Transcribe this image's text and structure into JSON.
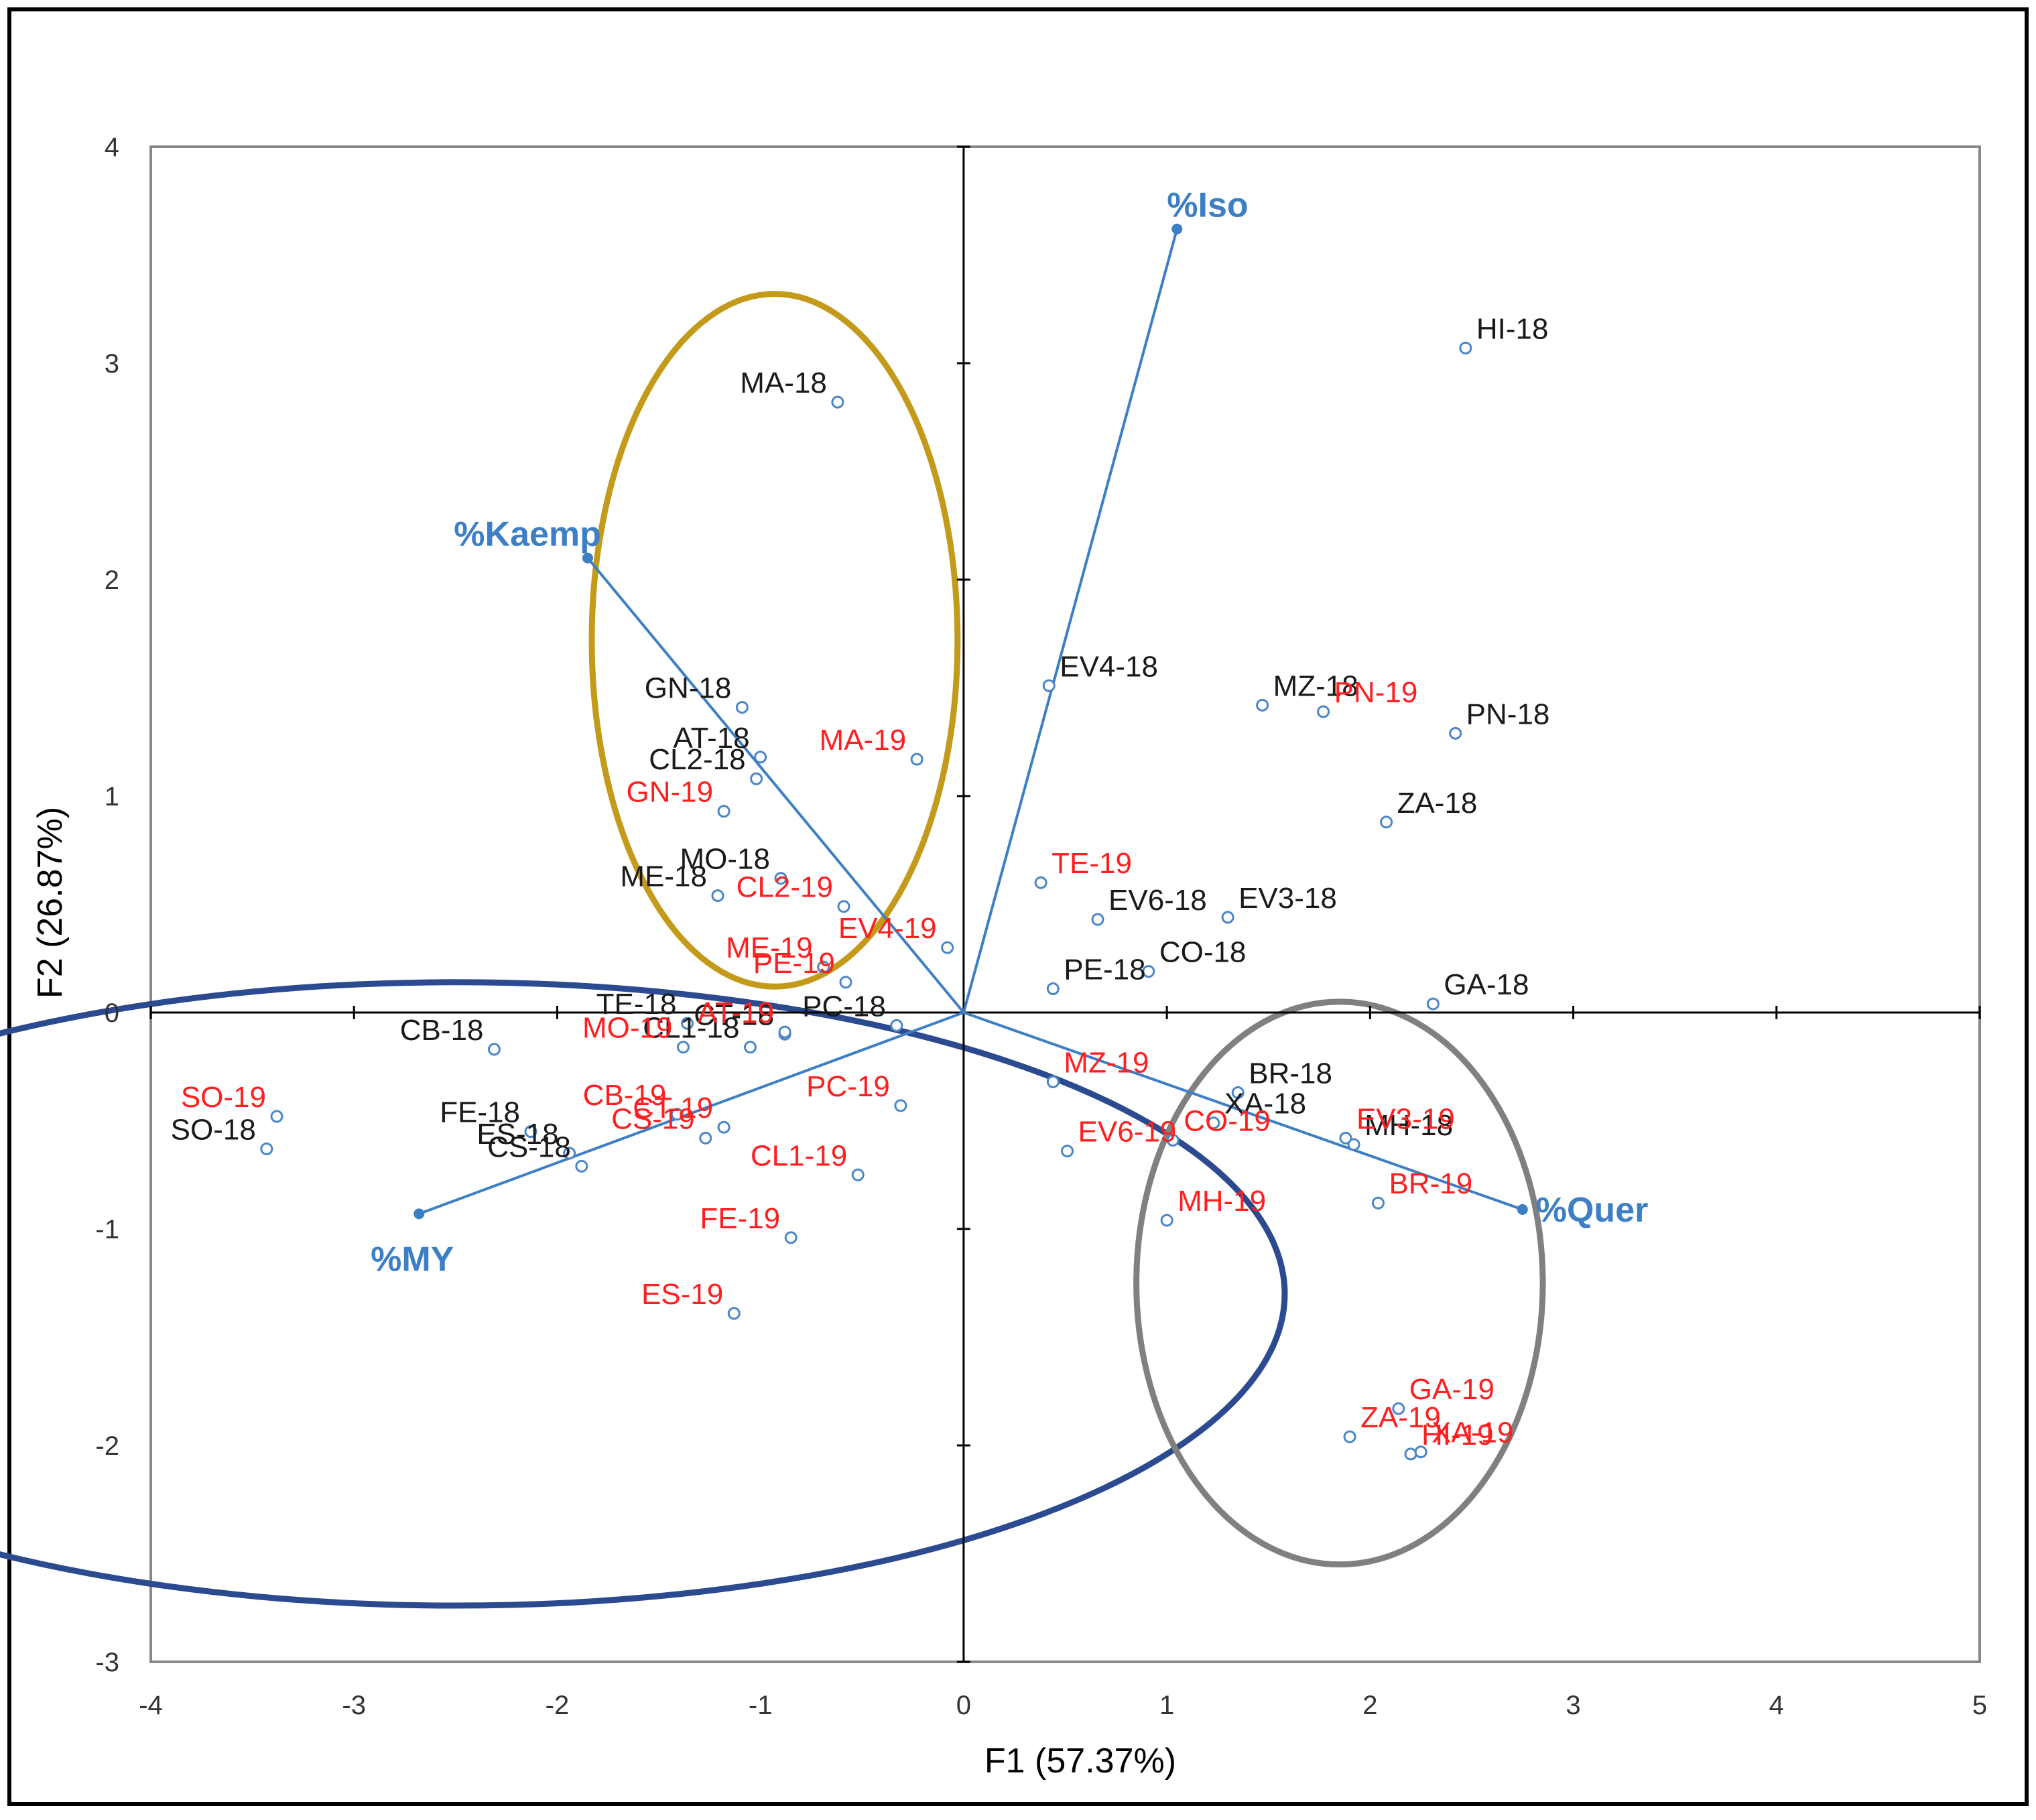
{
  "chart_data": {
    "type": "scatter",
    "subtype": "PCA biplot",
    "xlabel": "F1 (57.37%)",
    "ylabel": "F2 (26.87%)",
    "xlim": [
      -4,
      5
    ],
    "ylim": [
      -3,
      4
    ],
    "xticks": [
      -4,
      -3,
      -2,
      -1,
      0,
      1,
      2,
      3,
      4,
      5
    ],
    "yticks": [
      -3,
      -2,
      -1,
      0,
      1,
      2,
      3,
      4
    ],
    "xtick_labels": [
      "-4",
      "-3",
      "-2",
      "-1",
      "0",
      "1",
      "2",
      "3",
      "4",
      "5"
    ],
    "ytick_labels": [
      "-3",
      "-2",
      "-1",
      "0",
      "1",
      "2",
      "3",
      "4"
    ],
    "colors": {
      "series_2018": "#1a1a1a",
      "series_2019": "#ff1f1f",
      "marker": "#4a86c8",
      "vector": "#3d7fc4",
      "vector_label": "#3d7fc4",
      "axis": "#000000",
      "frame": "#888888"
    },
    "vectors": [
      {
        "label": "%Iso",
        "x": 1.05,
        "y": 3.62
      },
      {
        "label": "%Kaemp",
        "x": -1.85,
        "y": 2.1
      },
      {
        "label": "%MY",
        "x": -2.68,
        "y": -0.93
      },
      {
        "label": "%Quer",
        "x": 2.75,
        "y": -0.91
      }
    ],
    "ellipses": [
      {
        "name": "gold group",
        "color": "#c49a1a",
        "cx": -0.93,
        "cy": 1.72,
        "rx": 0.9,
        "ry": 1.6
      },
      {
        "name": "blue group",
        "color": "#2b4a8f",
        "cx": -2.5,
        "cy": -1.3,
        "rx": 4.08,
        "ry": 1.44
      },
      {
        "name": "gray group",
        "color": "#808080",
        "cx": 1.85,
        "cy": -1.25,
        "rx": 1.0,
        "ry": 1.3
      }
    ],
    "series": [
      {
        "name": "2018",
        "points": [
          {
            "label": "HI-18",
            "x": 2.47,
            "y": 3.07
          },
          {
            "label": "MA-18",
            "x": -0.62,
            "y": 2.82
          },
          {
            "label": "GN-18",
            "x": -1.09,
            "y": 1.41
          },
          {
            "label": "AT-18",
            "x": -1.0,
            "y": 1.18
          },
          {
            "label": "CL2-18",
            "x": -1.02,
            "y": 1.08
          },
          {
            "label": "EV4-18",
            "x": 0.42,
            "y": 1.51
          },
          {
            "label": "MZ-18",
            "x": 1.47,
            "y": 1.42
          },
          {
            "label": "PN-18",
            "x": 2.42,
            "y": 1.29
          },
          {
            "label": "ZA-18",
            "x": 2.08,
            "y": 0.88
          },
          {
            "label": "MO-18",
            "x": -0.9,
            "y": 0.62
          },
          {
            "label": "ME-18",
            "x": -1.21,
            "y": 0.54
          },
          {
            "label": "EV6-18",
            "x": 0.66,
            "y": 0.43
          },
          {
            "label": "EV3-18",
            "x": 1.3,
            "y": 0.44
          },
          {
            "label": "PE-18",
            "x": 0.44,
            "y": 0.11
          },
          {
            "label": "CO-18",
            "x": 0.91,
            "y": 0.19
          },
          {
            "label": "GA-18",
            "x": 2.31,
            "y": 0.04
          },
          {
            "label": "TE-18",
            "x": -1.36,
            "y": -0.05
          },
          {
            "label": "CL1-18",
            "x": -1.05,
            "y": -0.16
          },
          {
            "label": "PC-18",
            "x": -0.33,
            "y": -0.06
          },
          {
            "label": "CT-18",
            "x": -0.88,
            "y": -0.1
          },
          {
            "label": "CB-18",
            "x": -2.31,
            "y": -0.17
          },
          {
            "label": "BR-18",
            "x": 1.35,
            "y": -0.37
          },
          {
            "label": "XA-18",
            "x": 1.23,
            "y": -0.51
          },
          {
            "label": "MH-18",
            "x": 1.92,
            "y": -0.61
          },
          {
            "label": "FE-18",
            "x": -2.13,
            "y": -0.55
          },
          {
            "label": "ES-18",
            "x": -1.94,
            "y": -0.65
          },
          {
            "label": "CS-18",
            "x": -1.88,
            "y": -0.71
          },
          {
            "label": "SO-18",
            "x": -3.43,
            "y": -0.63
          }
        ]
      },
      {
        "name": "2019",
        "points": [
          {
            "label": "MA-19",
            "x": -0.23,
            "y": 1.17
          },
          {
            "label": "PN-19",
            "x": 1.77,
            "y": 1.39
          },
          {
            "label": "GN-19",
            "x": -1.18,
            "y": 0.93
          },
          {
            "label": "TE-19",
            "x": 0.38,
            "y": 0.6
          },
          {
            "label": "CL2-19",
            "x": -0.59,
            "y": 0.49
          },
          {
            "label": "EV4-19",
            "x": -0.08,
            "y": 0.3
          },
          {
            "label": "ME-19",
            "x": -0.69,
            "y": 0.21
          },
          {
            "label": "PE-19",
            "x": -0.58,
            "y": 0.14
          },
          {
            "label": "AT-19",
            "x": -0.88,
            "y": -0.09
          },
          {
            "label": "MO-19",
            "x": -1.38,
            "y": -0.16
          },
          {
            "label": "MZ-19",
            "x": 0.44,
            "y": -0.32
          },
          {
            "label": "PC-19",
            "x": -0.31,
            "y": -0.43
          },
          {
            "label": "CB-19",
            "x": -1.41,
            "y": -0.47
          },
          {
            "label": "CT-19",
            "x": -1.18,
            "y": -0.53
          },
          {
            "label": "CS-19",
            "x": -1.27,
            "y": -0.58
          },
          {
            "label": "EV6-19",
            "x": 0.51,
            "y": -0.64
          },
          {
            "label": "CO-19",
            "x": 1.03,
            "y": -0.59
          },
          {
            "label": "EV3-19",
            "x": 1.88,
            "y": -0.58
          },
          {
            "label": "BR-19",
            "x": 2.04,
            "y": -0.88
          },
          {
            "label": "SO-19",
            "x": -3.38,
            "y": -0.48
          },
          {
            "label": "CL1-19",
            "x": -0.52,
            "y": -0.75
          },
          {
            "label": "MH-19",
            "x": 1.0,
            "y": -0.96
          },
          {
            "label": "FE-19",
            "x": -0.85,
            "y": -1.04
          },
          {
            "label": "ES-19",
            "x": -1.13,
            "y": -1.39
          },
          {
            "label": "GA-19",
            "x": 2.14,
            "y": -1.83
          },
          {
            "label": "ZA-19",
            "x": 1.9,
            "y": -1.96
          },
          {
            "label": "HI-19",
            "x": 2.2,
            "y": -2.04
          },
          {
            "label": "XA-19",
            "x": 2.25,
            "y": -2.03
          }
        ]
      }
    ]
  }
}
